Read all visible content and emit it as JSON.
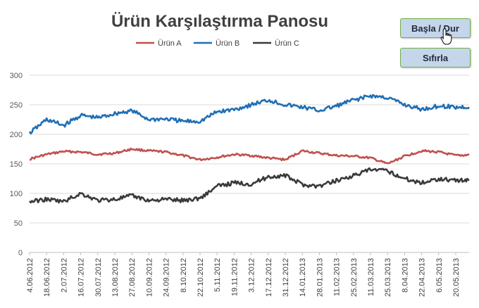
{
  "controls": {
    "start_stop_label": "Başla / Dur",
    "reset_label": "Sıfırla"
  },
  "chart_data": {
    "type": "line",
    "title": "Ürün Karşılaştırma Panosu",
    "legend_position": "top",
    "grid": true,
    "ylim": [
      0,
      300
    ],
    "yticks": [
      0,
      50,
      100,
      150,
      200,
      250,
      300
    ],
    "x_tick_labels": [
      "4.06.2012",
      "18.06.2012",
      "2.07.2012",
      "16.07.2012",
      "30.07.2012",
      "13.08.2012",
      "27.08.2012",
      "10.09.2012",
      "24.09.2012",
      "8.10.2012",
      "22.10.2012",
      "5.11.2012",
      "19.11.2012",
      "3.12.2012",
      "17.12.2012",
      "31.12.2012",
      "14.01.2013",
      "28.01.2013",
      "11.02.2013",
      "25.02.2013",
      "11.03.2013",
      "25.03.2013",
      "8.04.2013",
      "22.04.2013",
      "6.05.2013",
      "20.05.2013"
    ],
    "x_start": "2012-06-04",
    "x_end": "2013-05-31",
    "series": [
      {
        "name": "Ürün A",
        "color": "#c0504d",
        "points": [
          [
            "2012-06-04",
            158
          ],
          [
            "2012-06-18",
            166
          ],
          [
            "2012-07-02",
            171
          ],
          [
            "2012-07-16",
            170
          ],
          [
            "2012-07-30",
            166
          ],
          [
            "2012-08-13",
            168
          ],
          [
            "2012-08-27",
            175
          ],
          [
            "2012-09-10",
            172
          ],
          [
            "2012-09-24",
            170
          ],
          [
            "2012-10-08",
            164
          ],
          [
            "2012-10-22",
            157
          ],
          [
            "2012-11-05",
            161
          ],
          [
            "2012-11-19",
            166
          ],
          [
            "2012-12-03",
            164
          ],
          [
            "2012-12-17",
            160
          ],
          [
            "2012-12-31",
            157
          ],
          [
            "2013-01-14",
            172
          ],
          [
            "2013-01-28",
            168
          ],
          [
            "2013-02-11",
            164
          ],
          [
            "2013-02-25",
            163
          ],
          [
            "2013-03-11",
            160
          ],
          [
            "2013-03-25",
            150
          ],
          [
            "2013-04-08",
            163
          ],
          [
            "2013-04-22",
            172
          ],
          [
            "2013-05-06",
            170
          ],
          [
            "2013-05-20",
            164
          ],
          [
            "2013-05-31",
            165
          ]
        ]
      },
      {
        "name": "Ürün B",
        "color": "#1f6fb5",
        "points": [
          [
            "2012-06-04",
            202
          ],
          [
            "2012-06-18",
            225
          ],
          [
            "2012-07-02",
            215
          ],
          [
            "2012-07-16",
            232
          ],
          [
            "2012-07-30",
            228
          ],
          [
            "2012-08-13",
            235
          ],
          [
            "2012-08-27",
            240
          ],
          [
            "2012-09-10",
            225
          ],
          [
            "2012-09-24",
            226
          ],
          [
            "2012-10-08",
            222
          ],
          [
            "2012-10-22",
            222
          ],
          [
            "2012-11-05",
            238
          ],
          [
            "2012-11-19",
            242
          ],
          [
            "2012-12-03",
            250
          ],
          [
            "2012-12-17",
            258
          ],
          [
            "2012-12-31",
            250
          ],
          [
            "2013-01-14",
            246
          ],
          [
            "2013-01-28",
            240
          ],
          [
            "2013-02-11",
            248
          ],
          [
            "2013-02-25",
            258
          ],
          [
            "2013-03-11",
            265
          ],
          [
            "2013-03-25",
            262
          ],
          [
            "2013-04-08",
            250
          ],
          [
            "2013-04-22",
            242
          ],
          [
            "2013-05-06",
            248
          ],
          [
            "2013-05-20",
            246
          ],
          [
            "2013-05-31",
            246
          ]
        ]
      },
      {
        "name": "Ürün C",
        "color": "#3a3a3a",
        "points": [
          [
            "2012-06-04",
            86
          ],
          [
            "2012-06-18",
            90
          ],
          [
            "2012-07-02",
            86
          ],
          [
            "2012-07-16",
            100
          ],
          [
            "2012-07-30",
            88
          ],
          [
            "2012-08-13",
            90
          ],
          [
            "2012-08-27",
            96
          ],
          [
            "2012-09-10",
            88
          ],
          [
            "2012-09-24",
            90
          ],
          [
            "2012-10-08",
            88
          ],
          [
            "2012-10-22",
            92
          ],
          [
            "2012-11-05",
            112
          ],
          [
            "2012-11-19",
            118
          ],
          [
            "2012-12-03",
            116
          ],
          [
            "2012-12-17",
            128
          ],
          [
            "2012-12-31",
            130
          ],
          [
            "2013-01-14",
            115
          ],
          [
            "2013-01-28",
            112
          ],
          [
            "2013-02-11",
            122
          ],
          [
            "2013-02-25",
            130
          ],
          [
            "2013-03-11",
            140
          ],
          [
            "2013-03-25",
            138
          ],
          [
            "2013-04-08",
            125
          ],
          [
            "2013-04-22",
            118
          ],
          [
            "2013-05-06",
            125
          ],
          [
            "2013-05-20",
            122
          ],
          [
            "2013-05-31",
            122
          ]
        ]
      }
    ]
  }
}
